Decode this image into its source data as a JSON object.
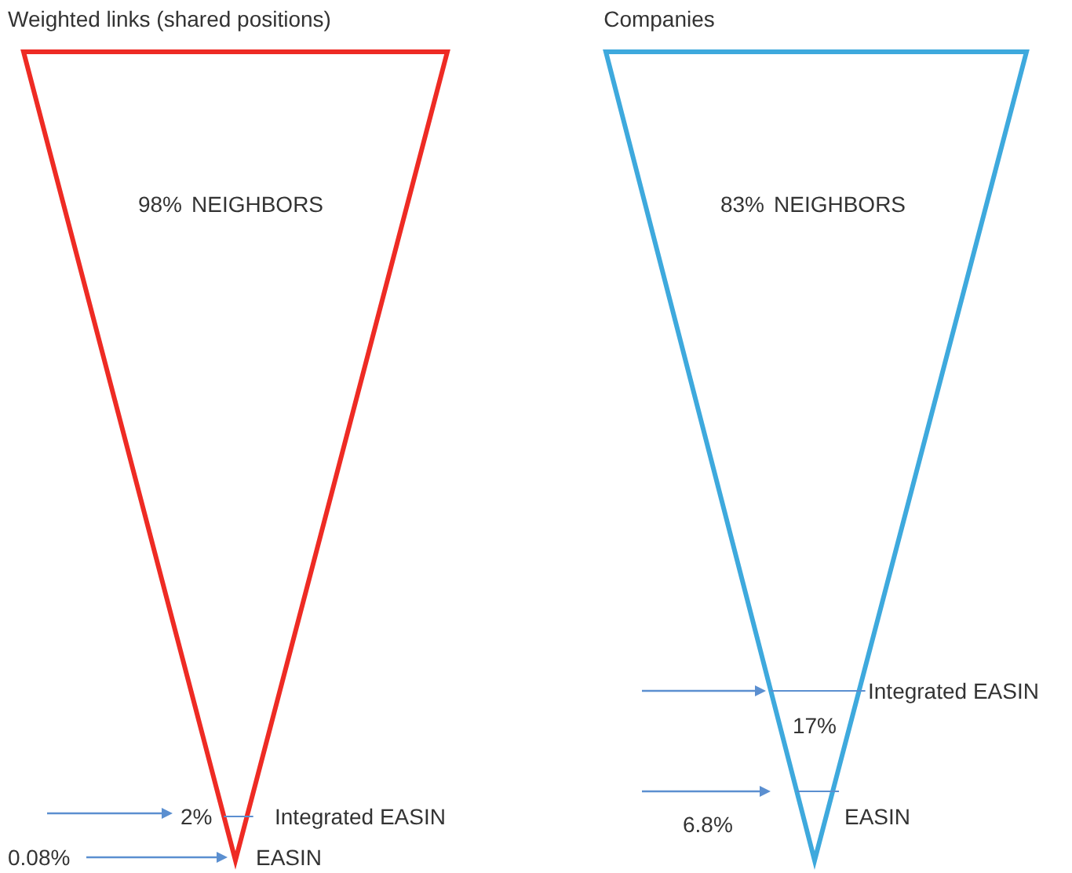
{
  "chart_data": [
    {
      "type": "other",
      "title": "Weighted links (shared positions)",
      "categories": [
        "NEIGHBORS",
        "Integrated EASIN",
        "EASIN"
      ],
      "values": [
        98,
        2,
        0.08
      ],
      "value_labels": [
        "98%",
        "2%",
        "0.08%"
      ],
      "color": "#ee2b24"
    },
    {
      "type": "other",
      "title": "Companies",
      "categories": [
        "NEIGHBORS",
        "Integrated EASIN",
        "EASIN"
      ],
      "values": [
        83,
        17,
        6.8
      ],
      "value_labels": [
        "83%",
        "17%",
        "6.8%"
      ],
      "color": "#3ea9dd"
    }
  ]
}
